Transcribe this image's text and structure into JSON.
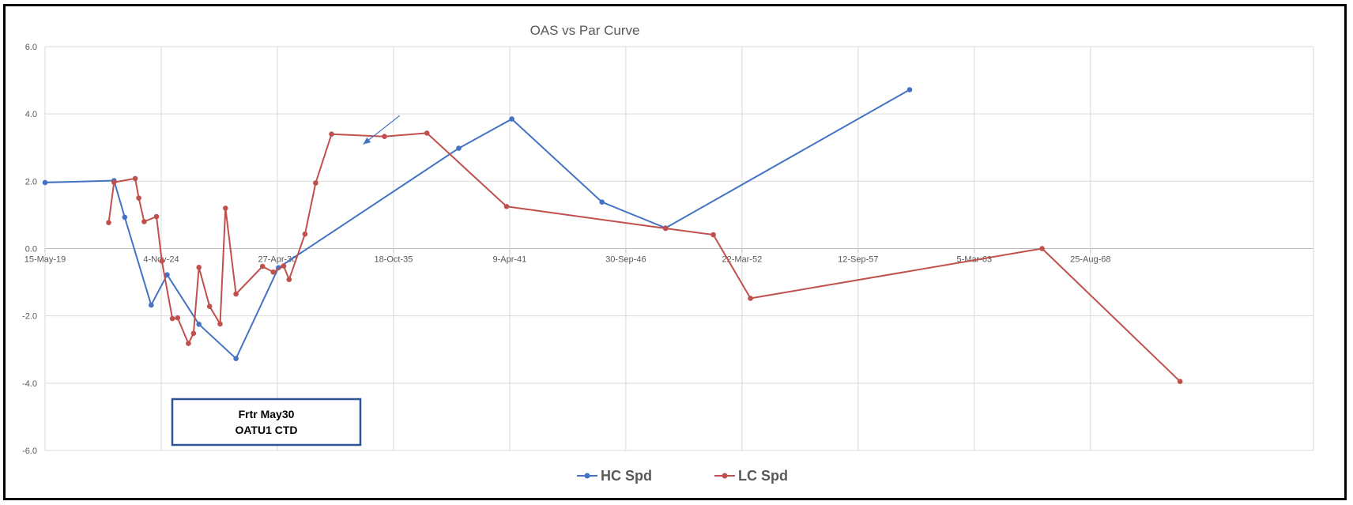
{
  "chart_data": {
    "type": "line",
    "title": "OAS vs Par Curve",
    "xlabel": "",
    "ylabel": "",
    "x_axis_type": "date",
    "xlim": [
      "2019-05-15",
      "2079-03-01"
    ],
    "ylim": [
      -6.0,
      6.0
    ],
    "x_tick_labels": [
      "15-May-19",
      "4-Nov-24",
      "27-Apr-30",
      "18-Oct-35",
      "9-Apr-41",
      "30-Sep-46",
      "22-Mar-52",
      "12-Sep-57",
      "5-Mar-63",
      "25-Aug-68"
    ],
    "x_tick_dates": [
      "2019-05-15",
      "2024-11-04",
      "2030-04-27",
      "2035-10-18",
      "2041-04-09",
      "2046-09-30",
      "2052-03-22",
      "2057-09-12",
      "2063-03-05",
      "2068-08-25"
    ],
    "y_ticks": [
      6.0,
      4.0,
      2.0,
      0.0,
      -2.0,
      -4.0,
      -6.0
    ],
    "y_tick_labels": [
      "6.0",
      "4.0",
      "2.0",
      "0.0",
      "-2.0",
      "-4.0",
      "-6.0"
    ],
    "grid": true,
    "legend_position": "bottom",
    "series": [
      {
        "name": "HC Spd",
        "color": "#4472C4",
        "points": [
          [
            "2019-05-15",
            1.96
          ],
          [
            "2022-08-15",
            2.02
          ],
          [
            "2023-02-15",
            0.93
          ],
          [
            "2024-05-15",
            -1.68
          ],
          [
            "2025-02-15",
            -0.78
          ],
          [
            "2026-08-15",
            -2.25
          ],
          [
            "2028-05-15",
            -3.27
          ],
          [
            "2030-05-15",
            -0.57
          ],
          [
            "2038-11-15",
            2.98
          ],
          [
            "2041-05-15",
            3.85
          ],
          [
            "2045-08-15",
            1.38
          ],
          [
            "2048-08-15",
            0.61
          ],
          [
            "2060-02-15",
            4.72
          ]
        ]
      },
      {
        "name": "LC Spd",
        "color": "#C0504D",
        "points": [
          [
            "2022-05-15",
            0.77
          ],
          [
            "2022-08-15",
            1.97
          ],
          [
            "2023-08-15",
            2.08
          ],
          [
            "2023-10-15",
            1.5
          ],
          [
            "2024-01-15",
            0.8
          ],
          [
            "2024-08-15",
            0.95
          ],
          [
            "2024-11-15",
            -0.37
          ],
          [
            "2025-05-15",
            -2.08
          ],
          [
            "2025-08-15",
            -2.06
          ],
          [
            "2026-02-15",
            -2.82
          ],
          [
            "2026-05-15",
            -2.52
          ],
          [
            "2026-08-15",
            -0.56
          ],
          [
            "2027-02-15",
            -1.72
          ],
          [
            "2027-08-15",
            -2.24
          ],
          [
            "2027-11-15",
            1.2
          ],
          [
            "2028-05-15",
            -1.35
          ],
          [
            "2029-08-15",
            -0.53
          ],
          [
            "2030-02-15",
            -0.7
          ],
          [
            "2030-08-15",
            -0.52
          ],
          [
            "2030-11-15",
            -0.92
          ],
          [
            "2031-08-15",
            0.43
          ],
          [
            "2032-02-15",
            1.95
          ],
          [
            "2032-11-15",
            3.4
          ],
          [
            "2035-05-15",
            3.33
          ],
          [
            "2037-05-15",
            3.43
          ],
          [
            "2041-02-15",
            1.25
          ],
          [
            "2048-08-15",
            0.6
          ],
          [
            "2050-11-15",
            0.41
          ],
          [
            "2052-08-15",
            -1.48
          ],
          [
            "2066-05-15",
            0.0
          ],
          [
            "2072-11-15",
            -3.95
          ]
        ]
      }
    ],
    "annotations": {
      "box_lines": [
        "Frtr May30",
        "OATU1 CTD"
      ],
      "arrow": {
        "from": [
          "2036-02-01",
          3.95
        ],
        "to": [
          "2034-05-15",
          3.1
        ]
      }
    }
  }
}
